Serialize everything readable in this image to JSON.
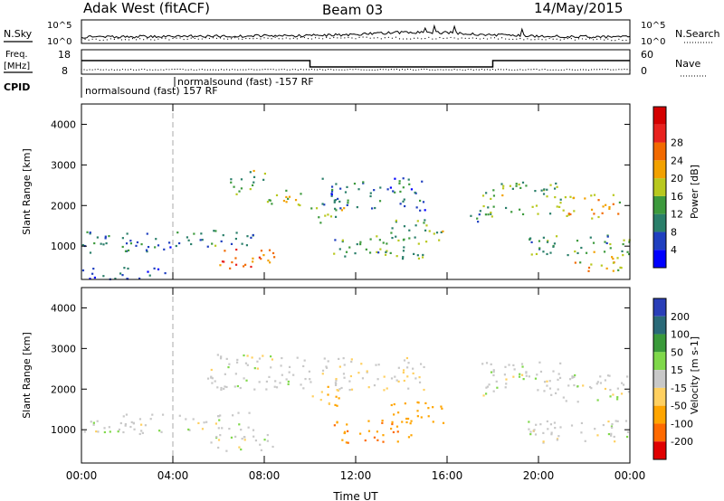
{
  "header": {
    "station": "Adak West (fitACF)",
    "beam": "Beam 03",
    "date": "14/May/2015"
  },
  "noise_panel": {
    "left_label": "N.Sky",
    "right_label": "N.Search",
    "y_ticks": [
      "10^5",
      "10^0"
    ]
  },
  "freq_panel": {
    "left_label_line1": "Freq.",
    "left_label_line2": "[MHz]",
    "left_ticks": [
      "18",
      "8"
    ],
    "right_label": "Nave",
    "right_ticks": [
      "60",
      "0"
    ]
  },
  "cpid_panel": {
    "label": "CPID",
    "modes": [
      {
        "name": "normalsound (fast) 157 RF"
      },
      {
        "name": "normalsound (fast) -157 RF"
      }
    ]
  },
  "power_panel": {
    "ylabel": "Slant Range [km]",
    "y_ticks": [
      "1000",
      "2000",
      "3000",
      "4000"
    ],
    "colorbar_label": "Power [dB]",
    "colorbar_ticks": [
      "4",
      "8",
      "12",
      "16",
      "20",
      "24",
      "28"
    ],
    "colors": [
      "#0000ff",
      "#1f3fbf",
      "#2a7f6a",
      "#3d9a3d",
      "#b8c81e",
      "#f2a100",
      "#f26a00",
      "#e8221e",
      "#d40000"
    ]
  },
  "velocity_panel": {
    "ylabel": "Slant Range [km]",
    "y_ticks": [
      "1000",
      "2000",
      "3000",
      "4000"
    ],
    "colorbar_label": "Velocity [m s-1]",
    "colorbar_ticks": [
      "200",
      "100",
      "50",
      "15",
      "-15",
      "-50",
      "-100",
      "-200"
    ],
    "colors": [
      "#2a3fb8",
      "#2a6a78",
      "#3a9a3a",
      "#7fd84a",
      "#c8c8c8",
      "#ffd060",
      "#ffa500",
      "#ff6a00",
      "#e00000"
    ]
  },
  "x_axis": {
    "label": "Time UT",
    "ticks": [
      "00:00",
      "04:00",
      "08:00",
      "12:00",
      "16:00",
      "20:00",
      "00:00"
    ]
  },
  "chart_data": {
    "type": "heatmap",
    "x_range_hours": [
      0,
      24
    ],
    "y_range_km": [
      180,
      4500
    ],
    "power_range_db": [
      0,
      30
    ],
    "velocity_range": [
      -250,
      250
    ],
    "power_regions": [
      {
        "t0": 0.0,
        "t1": 4.3,
        "r0": 850,
        "r1": 1400,
        "p": 8
      },
      {
        "t0": 0.0,
        "t1": 4.0,
        "r0": 200,
        "r1": 500,
        "p": 5
      },
      {
        "t0": 4.5,
        "t1": 7.5,
        "r0": 1000,
        "r1": 1450,
        "p": 9
      },
      {
        "t0": 5.8,
        "t1": 8.5,
        "r0": 450,
        "r1": 950,
        "p": 22
      },
      {
        "t0": 6.5,
        "t1": 8.0,
        "r0": 2300,
        "r1": 2900,
        "p": 13
      },
      {
        "t0": 8.0,
        "t1": 10.0,
        "r0": 2000,
        "r1": 2450,
        "p": 15
      },
      {
        "t0": 10.0,
        "t1": 11.5,
        "r0": 1600,
        "r1": 2050,
        "p": 13
      },
      {
        "t0": 10.5,
        "t1": 15.0,
        "r0": 1900,
        "r1": 2700,
        "p": 8
      },
      {
        "t0": 11.0,
        "t1": 15.0,
        "r0": 700,
        "r1": 1300,
        "p": 11
      },
      {
        "t0": 13.5,
        "t1": 15.8,
        "r0": 1100,
        "r1": 1700,
        "p": 12
      },
      {
        "t0": 17.5,
        "t1": 21.0,
        "r0": 1800,
        "r1": 2600,
        "p": 12
      },
      {
        "t0": 21.0,
        "t1": 23.7,
        "r0": 1700,
        "r1": 2300,
        "p": 18
      },
      {
        "t0": 19.5,
        "t1": 24.0,
        "r0": 800,
        "r1": 1300,
        "p": 10
      },
      {
        "t0": 21.5,
        "t1": 24.0,
        "r0": 400,
        "r1": 900,
        "p": 18
      },
      {
        "t0": 17.0,
        "t1": 18.0,
        "r0": 1600,
        "r1": 2000,
        "p": 9
      }
    ],
    "velocity_regions": [
      {
        "t0": 0.0,
        "t1": 4.3,
        "r0": 900,
        "r1": 1400,
        "v": 0
      },
      {
        "t0": 4.5,
        "t1": 7.5,
        "r0": 1000,
        "r1": 1450,
        "v": 0
      },
      {
        "t0": 5.5,
        "t1": 8.5,
        "r0": 500,
        "r1": 950,
        "v": 0
      },
      {
        "t0": 5.5,
        "t1": 10.0,
        "r0": 2000,
        "r1": 2900,
        "v": 0
      },
      {
        "t0": 10.0,
        "t1": 11.5,
        "r0": 1600,
        "r1": 2100,
        "v": -60
      },
      {
        "t0": 10.5,
        "t1": 15.0,
        "r0": 2000,
        "r1": 2800,
        "v": -10
      },
      {
        "t0": 11.0,
        "t1": 14.5,
        "r0": 700,
        "r1": 1250,
        "v": -90
      },
      {
        "t0": 13.5,
        "t1": 15.8,
        "r0": 1100,
        "r1": 1700,
        "v": -80
      },
      {
        "t0": 17.5,
        "t1": 21.0,
        "r0": 1800,
        "r1": 2700,
        "v": 0
      },
      {
        "t0": 21.0,
        "t1": 24.0,
        "r0": 1700,
        "r1": 2400,
        "v": 0
      },
      {
        "t0": 19.5,
        "t1": 24.0,
        "r0": 700,
        "r1": 1300,
        "v": 0
      }
    ],
    "frequency_steps": [
      {
        "t0": 0.0,
        "t1": 10.0,
        "level": "high"
      },
      {
        "t0": 10.0,
        "t1": 18.0,
        "level": "low"
      },
      {
        "t0": 18.0,
        "t1": 24.0,
        "level": "high"
      }
    ],
    "cpid_switch_hour": 4.0
  }
}
